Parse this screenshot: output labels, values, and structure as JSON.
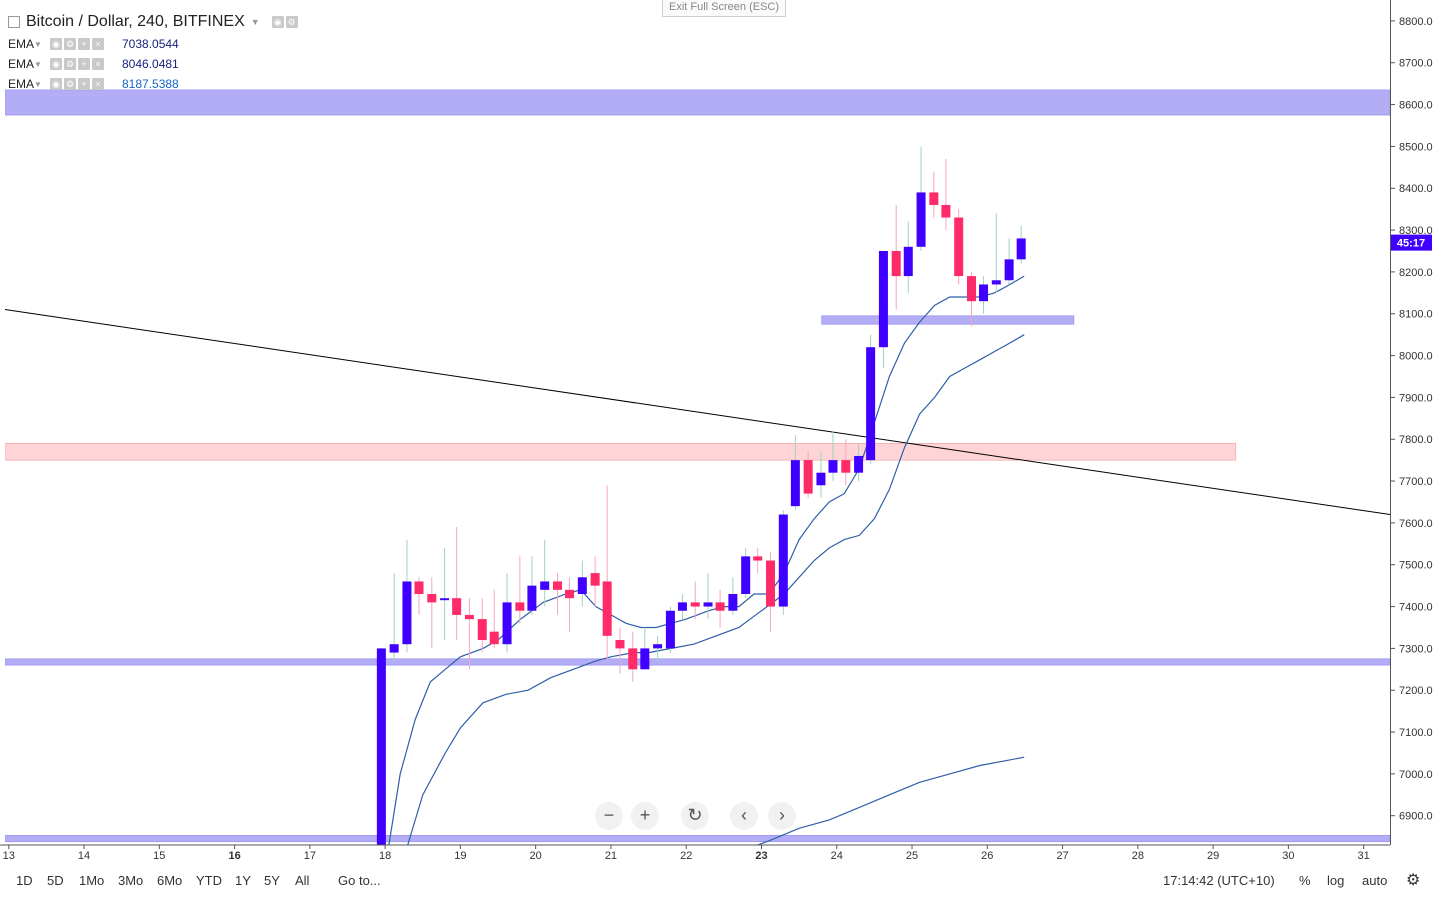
{
  "header": {
    "symbol_title": "Bitcoin / Dollar, 240, BITFINEX",
    "exit_fullscreen": "Exit Full Screen (ESC)"
  },
  "indicators": [
    {
      "name": "EMA",
      "value": "7038.0544",
      "color": "#1a237e"
    },
    {
      "name": "EMA",
      "value": "8046.0481",
      "color": "#1a237e"
    },
    {
      "name": "EMA",
      "value": "8187.5388",
      "color": "#1565c0"
    }
  ],
  "price_badge": {
    "label": "45:17",
    "color": "#3f00ff"
  },
  "toolbar": {
    "timeframes": [
      "1D",
      "5D",
      "1Mo",
      "3Mo",
      "6Mo",
      "YTD",
      "1Y",
      "5Y",
      "All"
    ],
    "goto": "Go to...",
    "clock": "17:14:42 (UTC+10)",
    "percent": "%",
    "log": "log",
    "auto": "auto"
  },
  "nav_buttons": [
    "zoom-out",
    "zoom-in",
    "reset",
    "scroll-left",
    "scroll-right"
  ],
  "colors": {
    "up": "#3f00ff",
    "down": "#ff2a68",
    "band_blue": "#b3adf5",
    "band_red": "#ffd4d6",
    "trendline": "#000000",
    "ema": "#2f5fa8"
  },
  "chart_data": {
    "type": "candlestick",
    "title": "Bitcoin / Dollar, 240, BITFINEX",
    "y_ticks": [
      6900,
      7000,
      7100,
      7200,
      7300,
      7400,
      7500,
      7600,
      7700,
      7800,
      7900,
      8000,
      8100,
      8200,
      8300,
      8400,
      8500,
      8600,
      8700,
      8800
    ],
    "x_ticks": [
      "13",
      "14",
      "15",
      "16",
      "17",
      "18",
      "19",
      "20",
      "21",
      "22",
      "23",
      "24",
      "25",
      "26",
      "27",
      "28",
      "29",
      "30",
      "31"
    ],
    "x_bold_ticks": [
      "16",
      "23"
    ],
    "ylim": [
      6830,
      8850
    ],
    "xlim": [
      12.95,
      31.35
    ],
    "candles": [
      {
        "t": 17.95,
        "o": 6820,
        "c": 7300,
        "h": 7300,
        "l": 6820
      },
      {
        "t": 18.12,
        "o": 7290,
        "c": 7310,
        "h": 7480,
        "l": 7270
      },
      {
        "t": 18.29,
        "o": 7310,
        "c": 7460,
        "h": 7560,
        "l": 7290
      },
      {
        "t": 18.45,
        "o": 7460,
        "c": 7430,
        "h": 7470,
        "l": 7380
      },
      {
        "t": 18.62,
        "o": 7430,
        "c": 7410,
        "h": 7470,
        "l": 7300
      },
      {
        "t": 18.79,
        "o": 7420,
        "c": 7420,
        "h": 7540,
        "l": 7320
      },
      {
        "t": 18.95,
        "o": 7420,
        "c": 7380,
        "h": 7590,
        "l": 7320
      },
      {
        "t": 19.12,
        "o": 7380,
        "c": 7370,
        "h": 7420,
        "l": 7250
      },
      {
        "t": 19.29,
        "o": 7370,
        "c": 7320,
        "h": 7420,
        "l": 7290
      },
      {
        "t": 19.45,
        "o": 7340,
        "c": 7310,
        "h": 7440,
        "l": 7300
      },
      {
        "t": 19.62,
        "o": 7310,
        "c": 7410,
        "h": 7480,
        "l": 7290
      },
      {
        "t": 19.79,
        "o": 7410,
        "c": 7390,
        "h": 7520,
        "l": 7360
      },
      {
        "t": 19.95,
        "o": 7390,
        "c": 7450,
        "h": 7520,
        "l": 7380
      },
      {
        "t": 20.12,
        "o": 7440,
        "c": 7460,
        "h": 7560,
        "l": 7400
      },
      {
        "t": 20.29,
        "o": 7460,
        "c": 7440,
        "h": 7480,
        "l": 7380
      },
      {
        "t": 20.45,
        "o": 7440,
        "c": 7420,
        "h": 7470,
        "l": 7340
      },
      {
        "t": 20.62,
        "o": 7430,
        "c": 7470,
        "h": 7510,
        "l": 7400
      },
      {
        "t": 20.79,
        "o": 7480,
        "c": 7450,
        "h": 7520,
        "l": 7400
      },
      {
        "t": 20.95,
        "o": 7460,
        "c": 7330,
        "h": 7690,
        "l": 7270
      },
      {
        "t": 21.12,
        "o": 7320,
        "c": 7300,
        "h": 7350,
        "l": 7240
      },
      {
        "t": 21.29,
        "o": 7300,
        "c": 7250,
        "h": 7340,
        "l": 7220
      },
      {
        "t": 21.45,
        "o": 7250,
        "c": 7300,
        "h": 7350,
        "l": 7250
      },
      {
        "t": 21.62,
        "o": 7300,
        "c": 7310,
        "h": 7330,
        "l": 7270
      },
      {
        "t": 21.79,
        "o": 7300,
        "c": 7390,
        "h": 7400,
        "l": 7290
      },
      {
        "t": 21.95,
        "o": 7390,
        "c": 7410,
        "h": 7430,
        "l": 7370
      },
      {
        "t": 22.12,
        "o": 7410,
        "c": 7400,
        "h": 7460,
        "l": 7370
      },
      {
        "t": 22.29,
        "o": 7400,
        "c": 7410,
        "h": 7480,
        "l": 7370
      },
      {
        "t": 22.45,
        "o": 7410,
        "c": 7390,
        "h": 7440,
        "l": 7350
      },
      {
        "t": 22.62,
        "o": 7390,
        "c": 7430,
        "h": 7470,
        "l": 7380
      },
      {
        "t": 22.79,
        "o": 7430,
        "c": 7520,
        "h": 7540,
        "l": 7420
      },
      {
        "t": 22.95,
        "o": 7520,
        "c": 7510,
        "h": 7540,
        "l": 7480
      },
      {
        "t": 23.12,
        "o": 7510,
        "c": 7400,
        "h": 7530,
        "l": 7340
      },
      {
        "t": 23.29,
        "o": 7400,
        "c": 7620,
        "h": 7630,
        "l": 7380
      },
      {
        "t": 23.45,
        "o": 7640,
        "c": 7750,
        "h": 7810,
        "l": 7630
      },
      {
        "t": 23.62,
        "o": 7750,
        "c": 7670,
        "h": 7770,
        "l": 7660
      },
      {
        "t": 23.79,
        "o": 7690,
        "c": 7720,
        "h": 7770,
        "l": 7660
      },
      {
        "t": 23.95,
        "o": 7720,
        "c": 7750,
        "h": 7820,
        "l": 7700
      },
      {
        "t": 24.12,
        "o": 7750,
        "c": 7720,
        "h": 7800,
        "l": 7690
      },
      {
        "t": 24.29,
        "o": 7720,
        "c": 7760,
        "h": 7790,
        "l": 7700
      },
      {
        "t": 24.45,
        "o": 7750,
        "c": 8020,
        "h": 8050,
        "l": 7740
      },
      {
        "t": 24.62,
        "o": 8020,
        "c": 8250,
        "h": 8250,
        "l": 7970
      },
      {
        "t": 24.79,
        "o": 8250,
        "c": 8190,
        "h": 8360,
        "l": 8110
      },
      {
        "t": 24.95,
        "o": 8190,
        "c": 8260,
        "h": 8320,
        "l": 8150
      },
      {
        "t": 25.12,
        "o": 8260,
        "c": 8390,
        "h": 8500,
        "l": 8250
      },
      {
        "t": 25.29,
        "o": 8390,
        "c": 8360,
        "h": 8440,
        "l": 8330
      },
      {
        "t": 25.45,
        "o": 8360,
        "c": 8330,
        "h": 8470,
        "l": 8300
      },
      {
        "t": 25.62,
        "o": 8330,
        "c": 8190,
        "h": 8350,
        "l": 8170
      },
      {
        "t": 25.79,
        "o": 8190,
        "c": 8130,
        "h": 8200,
        "l": 8070
      },
      {
        "t": 25.95,
        "o": 8130,
        "c": 8170,
        "h": 8190,
        "l": 8100
      },
      {
        "t": 26.12,
        "o": 8170,
        "c": 8180,
        "h": 8340,
        "l": 8150
      },
      {
        "t": 26.29,
        "o": 8180,
        "c": 8230,
        "h": 8280,
        "l": 8170
      },
      {
        "t": 26.45,
        "o": 8230,
        "c": 8280,
        "h": 8310,
        "l": 8220
      }
    ],
    "ema_lines": [
      {
        "points": [
          [
            18.05,
            6830
          ],
          [
            18.2,
            7000
          ],
          [
            18.4,
            7130
          ],
          [
            18.6,
            7220
          ],
          [
            18.8,
            7250
          ],
          [
            19.0,
            7280
          ],
          [
            19.3,
            7300
          ],
          [
            19.5,
            7320
          ],
          [
            19.8,
            7370
          ],
          [
            20.1,
            7410
          ],
          [
            20.4,
            7430
          ],
          [
            20.6,
            7440
          ],
          [
            20.8,
            7400
          ],
          [
            21.0,
            7380
          ],
          [
            21.2,
            7360
          ],
          [
            21.4,
            7350
          ],
          [
            21.6,
            7350
          ],
          [
            21.8,
            7360
          ],
          [
            22.0,
            7370
          ],
          [
            22.3,
            7390
          ],
          [
            22.5,
            7400
          ],
          [
            22.7,
            7400
          ],
          [
            22.9,
            7430
          ],
          [
            23.1,
            7430
          ],
          [
            23.3,
            7480
          ],
          [
            23.5,
            7560
          ],
          [
            23.7,
            7610
          ],
          [
            23.9,
            7650
          ],
          [
            24.1,
            7670
          ],
          [
            24.3,
            7730
          ],
          [
            24.5,
            7840
          ],
          [
            24.7,
            7950
          ],
          [
            24.9,
            8030
          ],
          [
            25.1,
            8080
          ],
          [
            25.3,
            8120
          ],
          [
            25.5,
            8140
          ],
          [
            25.7,
            8140
          ],
          [
            25.9,
            8140
          ],
          [
            26.1,
            8150
          ],
          [
            26.3,
            8170
          ],
          [
            26.49,
            8190
          ]
        ]
      },
      {
        "points": [
          [
            18.3,
            6830
          ],
          [
            18.5,
            6950
          ],
          [
            18.8,
            7050
          ],
          [
            19.0,
            7110
          ],
          [
            19.3,
            7170
          ],
          [
            19.6,
            7190
          ],
          [
            19.9,
            7200
          ],
          [
            20.2,
            7230
          ],
          [
            20.5,
            7250
          ],
          [
            20.8,
            7270
          ],
          [
            21.0,
            7280
          ],
          [
            21.3,
            7290
          ],
          [
            21.5,
            7290
          ],
          [
            21.8,
            7300
          ],
          [
            22.1,
            7310
          ],
          [
            22.4,
            7330
          ],
          [
            22.7,
            7350
          ],
          [
            23.0,
            7390
          ],
          [
            23.3,
            7430
          ],
          [
            23.5,
            7470
          ],
          [
            23.7,
            7510
          ],
          [
            23.9,
            7540
          ],
          [
            24.1,
            7560
          ],
          [
            24.3,
            7570
          ],
          [
            24.5,
            7610
          ],
          [
            24.7,
            7680
          ],
          [
            24.9,
            7780
          ],
          [
            25.1,
            7860
          ],
          [
            25.3,
            7900
          ],
          [
            25.5,
            7950
          ],
          [
            25.7,
            7970
          ],
          [
            25.9,
            7990
          ],
          [
            26.1,
            8010
          ],
          [
            26.3,
            8030
          ],
          [
            26.49,
            8050
          ]
        ]
      },
      {
        "points": [
          [
            22.8,
            6820
          ],
          [
            23.1,
            6840
          ],
          [
            23.5,
            6870
          ],
          [
            23.9,
            6890
          ],
          [
            24.3,
            6920
          ],
          [
            24.7,
            6950
          ],
          [
            25.1,
            6980
          ],
          [
            25.5,
            7000
          ],
          [
            25.9,
            7020
          ],
          [
            26.2,
            7030
          ],
          [
            26.49,
            7040
          ]
        ]
      }
    ],
    "bands": [
      {
        "y1": 8575,
        "y2": 8635,
        "color": "blue",
        "x_start": 12.95,
        "x_end": 31.35
      },
      {
        "y1": 7750,
        "y2": 7790,
        "color": "red",
        "x_start": 12.95,
        "x_end": 29.3
      },
      {
        "y1": 8075,
        "y2": 8095,
        "color": "blue",
        "x_start": 23.8,
        "x_end": 27.15
      },
      {
        "y1": 7260,
        "y2": 7275,
        "color": "blue",
        "x_start": 12.95,
        "x_end": 31.35
      },
      {
        "y1": 6838,
        "y2": 6853,
        "color": "blue",
        "x_start": 12.95,
        "x_end": 31.35
      }
    ],
    "trendline": {
      "x1": 12.95,
      "y1": 8110,
      "x2": 31.35,
      "y2": 7620
    },
    "current_price": 8270
  }
}
